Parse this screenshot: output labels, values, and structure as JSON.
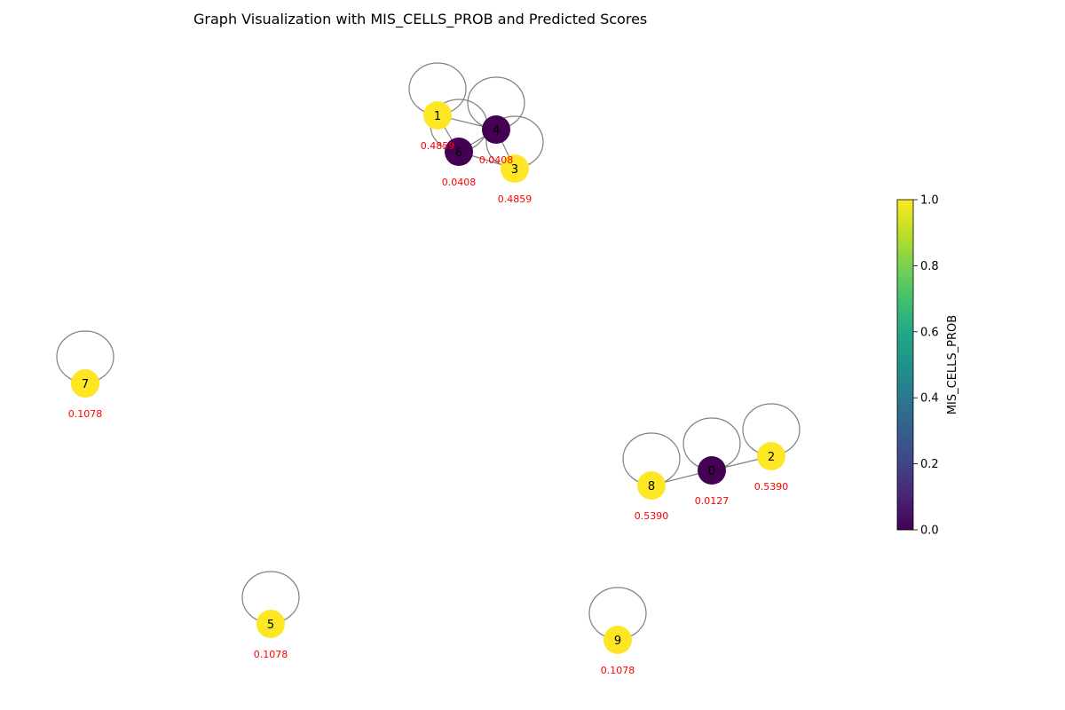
{
  "title": "Graph Visualization with MIS_CELLS_PROB and Predicted Scores",
  "colormap": "viridis",
  "colors": {
    "edge": "#808080",
    "score_text": "#ff0000",
    "low": "#440154",
    "high": "#fde725"
  },
  "colorbar": {
    "label": "MIS_CELLS_PROB",
    "range": [
      0.0,
      1.0
    ],
    "ticks": [
      "0.0",
      "0.2",
      "0.4",
      "0.6",
      "0.8",
      "1.0"
    ]
  },
  "nodes": [
    {
      "id": "0",
      "prob": 0.0,
      "score": "0.0127"
    },
    {
      "id": "1",
      "prob": 1.0,
      "score": "0.4859"
    },
    {
      "id": "2",
      "prob": 1.0,
      "score": "0.5390"
    },
    {
      "id": "3",
      "prob": 1.0,
      "score": "0.4859"
    },
    {
      "id": "4",
      "prob": 0.0,
      "score": "0.0408"
    },
    {
      "id": "5",
      "prob": 1.0,
      "score": "0.1078"
    },
    {
      "id": "6",
      "prob": 0.0,
      "score": "0.0408"
    },
    {
      "id": "7",
      "prob": 1.0,
      "score": "0.1078"
    },
    {
      "id": "8",
      "prob": 1.0,
      "score": "0.5390"
    },
    {
      "id": "9",
      "prob": 1.0,
      "score": "0.1078"
    }
  ],
  "edges": [
    [
      "1",
      "4"
    ],
    [
      "1",
      "6"
    ],
    [
      "4",
      "6"
    ],
    [
      "4",
      "3"
    ],
    [
      "6",
      "3"
    ],
    [
      "8",
      "0"
    ],
    [
      "0",
      "2"
    ]
  ],
  "self_loops": [
    "0",
    "1",
    "2",
    "3",
    "4",
    "5",
    "6",
    "7",
    "8",
    "9"
  ]
}
